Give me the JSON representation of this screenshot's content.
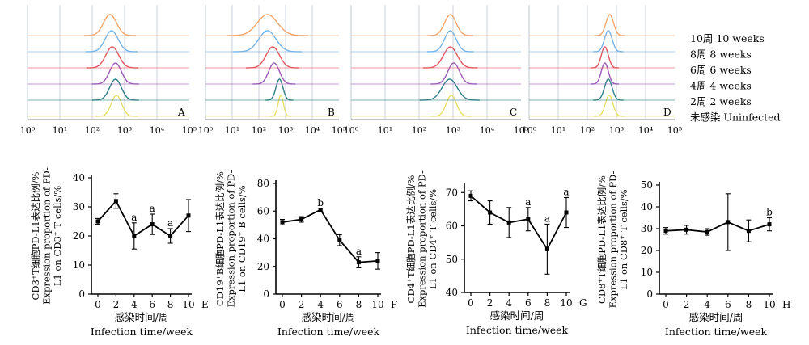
{
  "legend": {
    "items": [
      {
        "label": "10周  10  weeks",
        "color": "#f4a46a"
      },
      {
        "label": "8周  8  weeks",
        "color": "#74b3e6"
      },
      {
        "label": "6周  6  weeks",
        "color": "#e2555d"
      },
      {
        "label": "4周  4  weeks",
        "color": "#9b59b6"
      },
      {
        "label": "2周  2  weeks",
        "color": "#2f7f86"
      },
      {
        "label": "未感染  Uninfected",
        "color": "#e8df68"
      }
    ]
  },
  "histograms": [
    {
      "panel": "A",
      "xticks": [
        "10⁰",
        "10¹",
        "10²",
        "10³",
        "10⁴",
        "10⁵"
      ],
      "peaks": [
        {
          "series": "Uninfected",
          "center_log": 2.75,
          "width_log": 0.16
        },
        {
          "series": "2 weeks",
          "center_log": 2.72,
          "width_log": 0.18
        },
        {
          "series": "4 weeks",
          "center_log": 2.72,
          "width_log": 0.18
        },
        {
          "series": "6 weeks",
          "center_log": 2.62,
          "width_log": 0.2
        },
        {
          "series": "8 weeks",
          "center_log": 2.6,
          "width_log": 0.2
        },
        {
          "series": "10 weeks",
          "center_log": 2.55,
          "width_log": 0.2
        }
      ]
    },
    {
      "panel": "B",
      "xticks": [
        "10⁰",
        "10¹",
        "10²",
        "10³",
        "10⁴",
        "10⁵"
      ],
      "peaks": [
        {
          "series": "Uninfected",
          "center_log": 2.82,
          "width_log": 0.1
        },
        {
          "series": "2 weeks",
          "center_log": 2.77,
          "width_log": 0.13
        },
        {
          "series": "4 weeks",
          "center_log": 2.57,
          "width_log": 0.2
        },
        {
          "series": "6 weeks",
          "center_log": 2.52,
          "width_log": 0.25
        },
        {
          "series": "8 weeks",
          "center_log": 2.32,
          "width_log": 0.32
        },
        {
          "series": "10 weeks",
          "center_log": 2.32,
          "width_log": 0.38
        }
      ]
    },
    {
      "panel": "C",
      "xticks": [
        "10⁰",
        "10¹",
        "10²",
        "10³",
        "10⁴",
        "10⁵"
      ],
      "peaks": [
        {
          "series": "Uninfected",
          "center_log": 2.95,
          "width_log": 0.15
        },
        {
          "series": "2 weeks",
          "center_log": 2.9,
          "width_log": 0.22
        },
        {
          "series": "4 weeks",
          "center_log": 3.02,
          "width_log": 0.17
        },
        {
          "series": "6 weeks",
          "center_log": 2.92,
          "width_log": 0.2
        },
        {
          "series": "8 weeks",
          "center_log": 2.92,
          "width_log": 0.17
        },
        {
          "series": "10 weeks",
          "center_log": 2.92,
          "width_log": 0.17
        }
      ]
    },
    {
      "panel": "D",
      "xticks": [
        "10⁰",
        "10¹",
        "10²",
        "10³",
        "10⁴",
        "10⁵"
      ],
      "peaks": [
        {
          "series": "Uninfected",
          "center_log": 2.75,
          "width_log": 0.13
        },
        {
          "series": "2 weeks",
          "center_log": 2.72,
          "width_log": 0.13
        },
        {
          "series": "4 weeks",
          "center_log": 2.6,
          "width_log": 0.12
        },
        {
          "series": "6 weeks",
          "center_log": 2.6,
          "width_log": 0.12
        },
        {
          "series": "8 weeks",
          "center_log": 2.72,
          "width_log": 0.13
        },
        {
          "series": "10 weeks",
          "center_log": 2.77,
          "width_log": 0.13
        }
      ]
    }
  ],
  "chart_data": [
    {
      "type": "line",
      "panel": "E",
      "ylabel_lines": [
        "CD3⁺T细胞PD-L1表达比例/%",
        "Expression  proportion  of  PD-",
        "L1  on  CD3⁺  T  cells/%"
      ],
      "xlabel_cn": "感染时间/周",
      "xlabel_en": "Infection  time/week",
      "x": [
        0,
        2,
        4,
        6,
        8,
        10
      ],
      "y": [
        25,
        32,
        20,
        24,
        20,
        27
      ],
      "err": [
        1,
        2.5,
        4.5,
        3.5,
        2.5,
        5.5
      ],
      "annotations": [
        "",
        "",
        "a",
        "a",
        "a",
        ""
      ],
      "yticks": [
        0,
        10,
        20,
        30,
        40
      ],
      "ylim": [
        0,
        40
      ],
      "xticks": [
        0,
        2,
        4,
        6,
        8,
        10
      ]
    },
    {
      "type": "line",
      "panel": "F",
      "ylabel_lines": [
        "CD19⁺B细胞PD-L1表达比例/%",
        "Expression  proportion  of  PD-",
        "L1  on  CD19⁺  B  cells/%"
      ],
      "xlabel_cn": "感染时间/周",
      "xlabel_en": "Infection  time/week",
      "x": [
        0,
        2,
        4,
        6,
        8,
        10
      ],
      "y": [
        52,
        54,
        61,
        39,
        23,
        24
      ],
      "err": [
        2,
        2,
        1,
        4,
        4,
        6
      ],
      "annotations": [
        "",
        "",
        "b",
        "",
        "a",
        ""
      ],
      "yticks": [
        0,
        20,
        40,
        60,
        80
      ],
      "ylim": [
        0,
        80
      ],
      "xticks": [
        0,
        2,
        4,
        6,
        8,
        10
      ]
    },
    {
      "type": "line",
      "panel": "G",
      "ylabel_lines": [
        "CD4⁺T细胞PD-L1表达比例/%",
        "Expression  proportion  of  PD-",
        "L1  on  CD4⁺  T  cells/%"
      ],
      "xlabel_cn": "感染时间/周",
      "xlabel_en": "Infection  time/week",
      "x": [
        0,
        2,
        4,
        6,
        8,
        10
      ],
      "y": [
        69,
        64,
        61,
        62,
        53,
        64
      ],
      "err": [
        1.5,
        3.5,
        4.5,
        3.5,
        7.5,
        4.5
      ],
      "annotations": [
        "",
        "",
        "",
        "a",
        "a",
        "a"
      ],
      "yticks": [
        40,
        50,
        60,
        70
      ],
      "ylim": [
        40,
        72
      ],
      "xticks": [
        0,
        2,
        4,
        6,
        8,
        10
      ]
    },
    {
      "type": "line",
      "panel": "H",
      "ylabel_lines": [
        "CD8⁺T细胞PD-L1表达比例/%",
        "Expression  proportion  of  PD-",
        "L1  on  CD8⁺  T  cells/%"
      ],
      "xlabel_cn": "感染时间/周",
      "xlabel_en": "Infection  time/week",
      "x": [
        0,
        2,
        4,
        6,
        8,
        10
      ],
      "y": [
        29,
        29.5,
        28.5,
        33,
        29,
        32
      ],
      "err": [
        1.5,
        2,
        1.5,
        13,
        5,
        3
      ],
      "annotations": [
        "",
        "",
        "",
        "",
        "",
        "b"
      ],
      "yticks": [
        0,
        10,
        20,
        30,
        40,
        50
      ],
      "ylim": [
        0,
        50
      ],
      "xticks": [
        0,
        2,
        4,
        6,
        8,
        10
      ]
    }
  ]
}
